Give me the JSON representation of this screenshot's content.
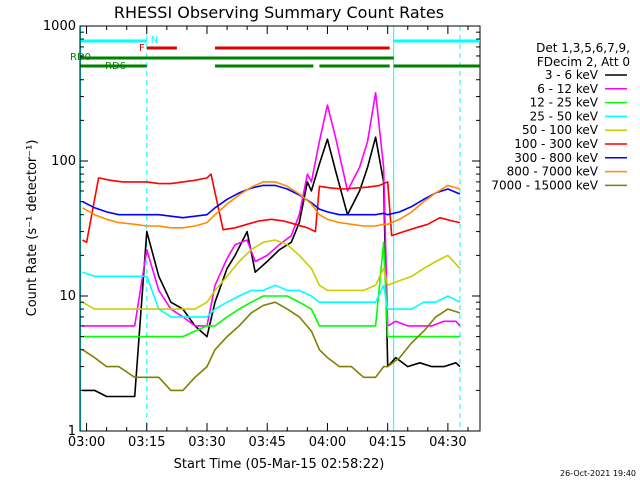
{
  "chart_data": {
    "type": "line",
    "title": "RHESSI Observing Summary Count Rates",
    "xlabel": "Start Time (05-Mar-15 02:58:22)",
    "ylabel": "Count Rate (s⁻¹ detector⁻¹)",
    "y_scale": "log",
    "ylim": [
      1,
      1000
    ],
    "xlim": [
      "02:58:22",
      "04:38:00"
    ],
    "x_ticks": [
      "03:00",
      "03:15",
      "03:30",
      "03:45",
      "04:00",
      "04:15",
      "04:30"
    ],
    "y_ticks": [
      "1",
      "10",
      "100",
      "1000"
    ],
    "legend": {
      "position": "top-right",
      "header": [
        "Det 1,3,5,6,7,9,",
        "FDecim 2, Att 0"
      ]
    },
    "series": [
      {
        "name": "3 - 6 keV",
        "color": "#000000",
        "x": [
          "02:59",
          "03:02",
          "03:05",
          "03:08",
          "03:12",
          "03:15",
          "03:18",
          "03:21",
          "03:24",
          "03:27",
          "03:30",
          "03:32",
          "03:35",
          "03:37",
          "03:40",
          "03:42",
          "03:45",
          "03:48",
          "03:51",
          "03:53",
          "03:55",
          "03:56",
          "03:58",
          "04:00",
          "04:02",
          "04:05",
          "04:08",
          "04:10",
          "04:12",
          "04:14",
          "04:15",
          "04:17",
          "04:20",
          "04:23",
          "04:26",
          "04:29",
          "04:32",
          "04:33"
        ],
        "values": [
          2,
          2,
          1.8,
          1.8,
          1.8,
          30,
          14,
          9,
          8,
          6,
          5,
          9,
          16,
          20,
          30,
          15,
          18,
          22,
          25,
          35,
          70,
          60,
          95,
          145,
          85,
          40,
          60,
          90,
          150,
          70,
          3,
          3.5,
          3,
          3.2,
          3,
          3,
          3.2,
          3
        ]
      },
      {
        "name": "6 - 12 keV",
        "color": "#ff00ff",
        "x": [
          "02:59",
          "03:02",
          "03:05",
          "03:08",
          "03:12",
          "03:15",
          "03:18",
          "03:21",
          "03:24",
          "03:27",
          "03:30",
          "03:32",
          "03:35",
          "03:37",
          "03:40",
          "03:42",
          "03:45",
          "03:48",
          "03:51",
          "03:53",
          "03:55",
          "03:56",
          "03:58",
          "04:00",
          "04:02",
          "04:05",
          "04:08",
          "04:10",
          "04:12",
          "04:14",
          "04:15",
          "04:17",
          "04:20",
          "04:23",
          "04:26",
          "04:29",
          "04:32",
          "04:33"
        ],
        "values": [
          6,
          6,
          6,
          6,
          6,
          22,
          11,
          8,
          7,
          6,
          6,
          12,
          19,
          24,
          26,
          18,
          20,
          24,
          28,
          40,
          80,
          70,
          140,
          260,
          150,
          60,
          90,
          140,
          320,
          90,
          6,
          6.5,
          6,
          6,
          6,
          6.5,
          6.5,
          6
        ]
      },
      {
        "name": "12 - 25 keV",
        "color": "#00ff00",
        "x": [
          "02:59",
          "03:02",
          "03:05",
          "03:08",
          "03:12",
          "03:15",
          "03:18",
          "03:21",
          "03:24",
          "03:27",
          "03:30",
          "03:32",
          "03:35",
          "03:38",
          "03:41",
          "03:44",
          "03:47",
          "03:50",
          "03:53",
          "03:56",
          "03:58",
          "04:00",
          "04:03",
          "04:06",
          "04:09",
          "04:12",
          "04:14",
          "04:15",
          "04:18",
          "04:21",
          "04:24",
          "04:27",
          "04:30",
          "04:33"
        ],
        "values": [
          5,
          5,
          5,
          5,
          5,
          5,
          5,
          5,
          5,
          5.5,
          6,
          6,
          7,
          8,
          9,
          10,
          10,
          10,
          9,
          8,
          6,
          6,
          6,
          6,
          6,
          6,
          25,
          5,
          5,
          5,
          5,
          5,
          5,
          5
        ]
      },
      {
        "name": "25 - 50 keV",
        "color": "#00ffff",
        "x": [
          "02:59",
          "03:02",
          "03:05",
          "03:08",
          "03:12",
          "03:15",
          "03:18",
          "03:21",
          "03:24",
          "03:27",
          "03:30",
          "03:32",
          "03:35",
          "03:38",
          "03:41",
          "03:44",
          "03:47",
          "03:50",
          "03:53",
          "03:56",
          "03:58",
          "04:00",
          "04:03",
          "04:06",
          "04:09",
          "04:12",
          "04:14",
          "04:15",
          "04:18",
          "04:21",
          "04:24",
          "04:27",
          "04:30",
          "04:33"
        ],
        "values": [
          15,
          14,
          14,
          14,
          14,
          14,
          8,
          7,
          7,
          7,
          7,
          8,
          9,
          10,
          11,
          11,
          12,
          11,
          11,
          10,
          9,
          9,
          9,
          9,
          9,
          9,
          12,
          8,
          8,
          8,
          9,
          9,
          10,
          9
        ]
      },
      {
        "name": "50 - 100 keV",
        "color": "#cccc00",
        "x": [
          "02:59",
          "03:02",
          "03:05",
          "03:08",
          "03:12",
          "03:15",
          "03:18",
          "03:21",
          "03:24",
          "03:27",
          "03:30",
          "03:32",
          "03:35",
          "03:38",
          "03:41",
          "03:44",
          "03:47",
          "03:50",
          "03:53",
          "03:56",
          "03:58",
          "04:00",
          "04:03",
          "04:06",
          "04:09",
          "04:12",
          "04:14",
          "04:15",
          "04:18",
          "04:21",
          "04:24",
          "04:27",
          "04:30",
          "04:33"
        ],
        "values": [
          9,
          8,
          8,
          8,
          8,
          8,
          8,
          8,
          8,
          8,
          9,
          11,
          14,
          18,
          22,
          25,
          26,
          24,
          20,
          16,
          12,
          11,
          11,
          11,
          11,
          12,
          16,
          12,
          13,
          14,
          16,
          18,
          20,
          16
        ]
      },
      {
        "name": "100 - 300 keV",
        "color": "#ff0000",
        "x": [
          "02:59",
          "03:00",
          "03:03",
          "03:06",
          "03:09",
          "03:12",
          "03:15",
          "03:18",
          "03:21",
          "03:24",
          "03:27",
          "03:30",
          "03:31",
          "03:34",
          "03:37",
          "03:40",
          "03:43",
          "03:46",
          "03:49",
          "03:52",
          "03:55",
          "03:57",
          "03:58",
          "04:01",
          "04:04",
          "04:07",
          "04:10",
          "04:13",
          "04:15",
          "04:16",
          "04:19",
          "04:22",
          "04:25",
          "04:28",
          "04:31",
          "04:33"
        ],
        "values": [
          26,
          25,
          75,
          72,
          70,
          70,
          70,
          68,
          68,
          70,
          72,
          75,
          80,
          31,
          32,
          34,
          36,
          37,
          36,
          34,
          32,
          30,
          65,
          63,
          62,
          63,
          64,
          66,
          70,
          28,
          30,
          32,
          34,
          38,
          36,
          35
        ]
      },
      {
        "name": "300 - 800 keV",
        "color": "#0000ff",
        "x": [
          "02:59",
          "03:02",
          "03:05",
          "03:08",
          "03:12",
          "03:15",
          "03:18",
          "03:21",
          "03:24",
          "03:27",
          "03:30",
          "03:32",
          "03:35",
          "03:38",
          "03:41",
          "03:44",
          "03:47",
          "03:50",
          "03:53",
          "03:56",
          "03:58",
          "04:00",
          "04:03",
          "04:06",
          "04:09",
          "04:12",
          "04:14",
          "04:15",
          "04:18",
          "04:21",
          "04:24",
          "04:27",
          "04:30",
          "04:33"
        ],
        "values": [
          50,
          45,
          42,
          40,
          40,
          40,
          40,
          39,
          38,
          39,
          40,
          45,
          52,
          58,
          63,
          66,
          66,
          62,
          56,
          49,
          44,
          42,
          40,
          40,
          40,
          40,
          41,
          40,
          42,
          46,
          52,
          58,
          62,
          57
        ]
      },
      {
        "name": "800 - 7000 keV",
        "color": "#ff8c00",
        "x": [
          "02:59",
          "03:02",
          "03:05",
          "03:08",
          "03:12",
          "03:15",
          "03:18",
          "03:21",
          "03:24",
          "03:27",
          "03:30",
          "03:32",
          "03:35",
          "03:38",
          "03:41",
          "03:44",
          "03:47",
          "03:50",
          "03:53",
          "03:56",
          "03:58",
          "04:00",
          "04:03",
          "04:06",
          "04:09",
          "04:12",
          "04:14",
          "04:15",
          "04:18",
          "04:21",
          "04:24",
          "04:27",
          "04:30",
          "04:33"
        ],
        "values": [
          45,
          40,
          37,
          35,
          34,
          33,
          33,
          32,
          32,
          33,
          35,
          40,
          48,
          56,
          64,
          70,
          70,
          65,
          57,
          48,
          40,
          37,
          35,
          34,
          33,
          33,
          34,
          34,
          37,
          42,
          50,
          58,
          66,
          62
        ]
      },
      {
        "name": "7000 - 15000 keV",
        "color": "#808000",
        "x": [
          "02:59",
          "03:02",
          "03:05",
          "03:08",
          "03:12",
          "03:15",
          "03:18",
          "03:21",
          "03:24",
          "03:27",
          "03:30",
          "03:32",
          "03:35",
          "03:38",
          "03:41",
          "03:44",
          "03:47",
          "03:50",
          "03:53",
          "03:56",
          "03:58",
          "04:00",
          "04:03",
          "04:06",
          "04:09",
          "04:12",
          "04:14",
          "04:15",
          "04:18",
          "04:21",
          "04:24",
          "04:27",
          "04:30",
          "04:33"
        ],
        "values": [
          4,
          3.5,
          3,
          3,
          2.5,
          2.5,
          2.5,
          2,
          2,
          2.5,
          3,
          4,
          5,
          6,
          7.5,
          8.5,
          9,
          8,
          7,
          5.5,
          4,
          3.5,
          3,
          3,
          2.5,
          2.5,
          3,
          3,
          3.5,
          4.5,
          5.5,
          7,
          8,
          7.5
        ]
      }
    ],
    "annotations": {
      "vertical_lines": {
        "color": "#00ffff",
        "solid": [
          "02:58:30",
          "04:16:30"
        ],
        "dashed": [
          "03:15:00",
          "04:33:00"
        ]
      },
      "flag_bars": [
        {
          "label": "N",
          "color": "#00ffff",
          "level": 1,
          "segments": [
            [
              "02:58:30",
              "03:15:00"
            ],
            [
              "04:16:30",
              "04:38:00"
            ]
          ]
        },
        {
          "label": "F",
          "color": "#e00000",
          "level": 2,
          "segments": [
            [
              "03:15:00",
              "03:22:30"
            ],
            [
              "03:32:00",
              "04:15:30"
            ]
          ]
        },
        {
          "label": "RD0",
          "color": "#008000",
          "level": 3,
          "segments": [
            [
              "02:58:30",
              "03:32:00"
            ],
            [
              "03:32:00",
              "04:16:30"
            ]
          ]
        },
        {
          "label": "RD6",
          "color": "#008000",
          "level": 4,
          "segments": [
            [
              "02:58:30",
              "03:15:00"
            ],
            [
              "03:32:00",
              "03:56:30"
            ],
            [
              "03:58:00",
              "04:15:30"
            ],
            [
              "04:16:30",
              "04:38:00"
            ]
          ]
        }
      ]
    },
    "footer": "26-Oct-2021 19:40"
  }
}
